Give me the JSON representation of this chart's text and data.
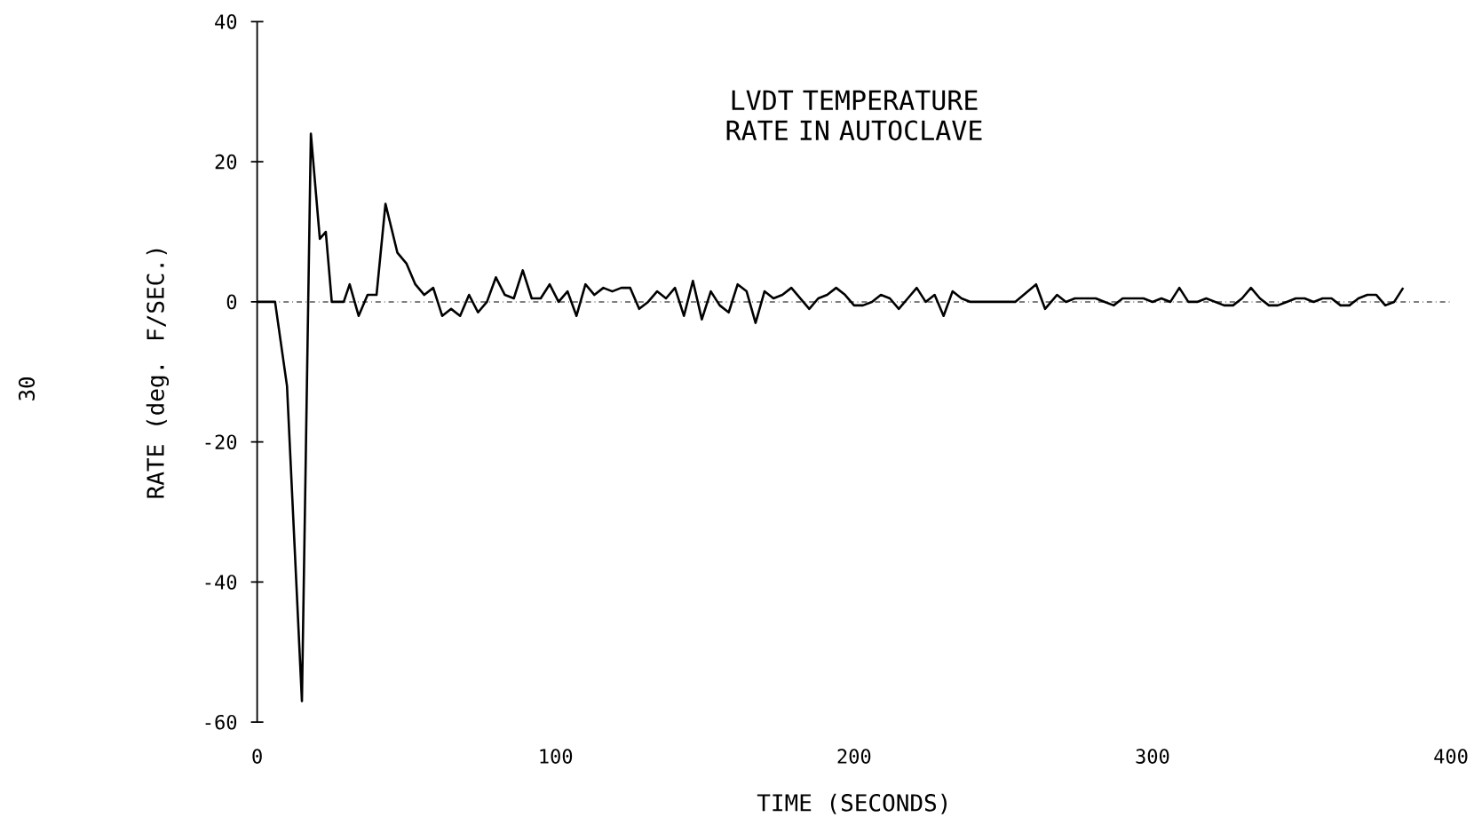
{
  "chart_data": {
    "type": "line",
    "title": "LVDT TEMPERATURE RATE IN AUTOCLAVE",
    "xlabel": "TIME (SECONDS)",
    "ylabel": "RATE (deg. F/SEC.)",
    "xlim": [
      0,
      400
    ],
    "ylim": [
      -60,
      40
    ],
    "xticks": [
      0,
      100,
      200,
      300,
      400
    ],
    "yticks": [
      -60,
      -40,
      -20,
      0,
      20,
      40
    ],
    "grid": false,
    "marker": "none",
    "line_style": "solid",
    "ref_lines": [
      {
        "axis": "y",
        "value": 0
      }
    ],
    "annotations": [
      "30"
    ],
    "series": [
      {
        "color": "#000000",
        "x": [
          0,
          6,
          10,
          15,
          18,
          21,
          23,
          25,
          29,
          31,
          34,
          37,
          40,
          43,
          47,
          50,
          53,
          56,
          59,
          62,
          65,
          68,
          71,
          74,
          77,
          80,
          83,
          86,
          89,
          92,
          95,
          98,
          101,
          104,
          107,
          110,
          113,
          116,
          119,
          122,
          125,
          128,
          131,
          134,
          137,
          140,
          143,
          146,
          149,
          152,
          155,
          158,
          161,
          164,
          167,
          170,
          173,
          176,
          179,
          182,
          185,
          188,
          191,
          194,
          197,
          200,
          203,
          206,
          209,
          212,
          215,
          218,
          221,
          224,
          227,
          230,
          233,
          236,
          239,
          242,
          245,
          248,
          251,
          254,
          261,
          264,
          268,
          271,
          274,
          278,
          281,
          284,
          287,
          290,
          293,
          297,
          300,
          303,
          306,
          309,
          312,
          315,
          318,
          321,
          324,
          327,
          330,
          333,
          336,
          339,
          342,
          345,
          348,
          351,
          354,
          357,
          360,
          363,
          366,
          369,
          372,
          375,
          378,
          381,
          384
        ],
        "values": [
          0,
          0,
          -12,
          -57,
          24,
          9,
          10,
          0,
          0,
          2.5,
          -2,
          1,
          1,
          14,
          7,
          5.5,
          2.5,
          1,
          2,
          -2,
          -1,
          -2,
          1,
          -1.5,
          0,
          3.5,
          1,
          0.5,
          4.5,
          0.5,
          0.5,
          2.5,
          0,
          1.5,
          -2,
          2.5,
          1,
          2,
          1.5,
          2,
          2,
          -1,
          0,
          1.5,
          0.5,
          2,
          -2,
          3,
          -2.5,
          1.5,
          -0.5,
          -1.5,
          2.5,
          1.5,
          -3,
          1.5,
          0.5,
          1,
          2,
          0.5,
          -1,
          0.5,
          1,
          2,
          1,
          -0.5,
          -0.5,
          0,
          1,
          0.5,
          -1,
          0.5,
          2,
          0,
          1,
          -2,
          1.5,
          0.5,
          0,
          0,
          0,
          0,
          0,
          0,
          2.5,
          -1,
          1,
          0,
          0.5,
          0.5,
          0.5,
          0,
          -0.5,
          0.5,
          0.5,
          0.5,
          0,
          0.5,
          0,
          2,
          0,
          0,
          0.5,
          0,
          -0.5,
          -0.5,
          0.5,
          2,
          0.5,
          -0.5,
          -0.5,
          0,
          0.5,
          0.5,
          0,
          0.5,
          0.5,
          -0.5,
          -0.5,
          0.5,
          1,
          1,
          -0.5,
          0,
          2
        ]
      }
    ]
  }
}
